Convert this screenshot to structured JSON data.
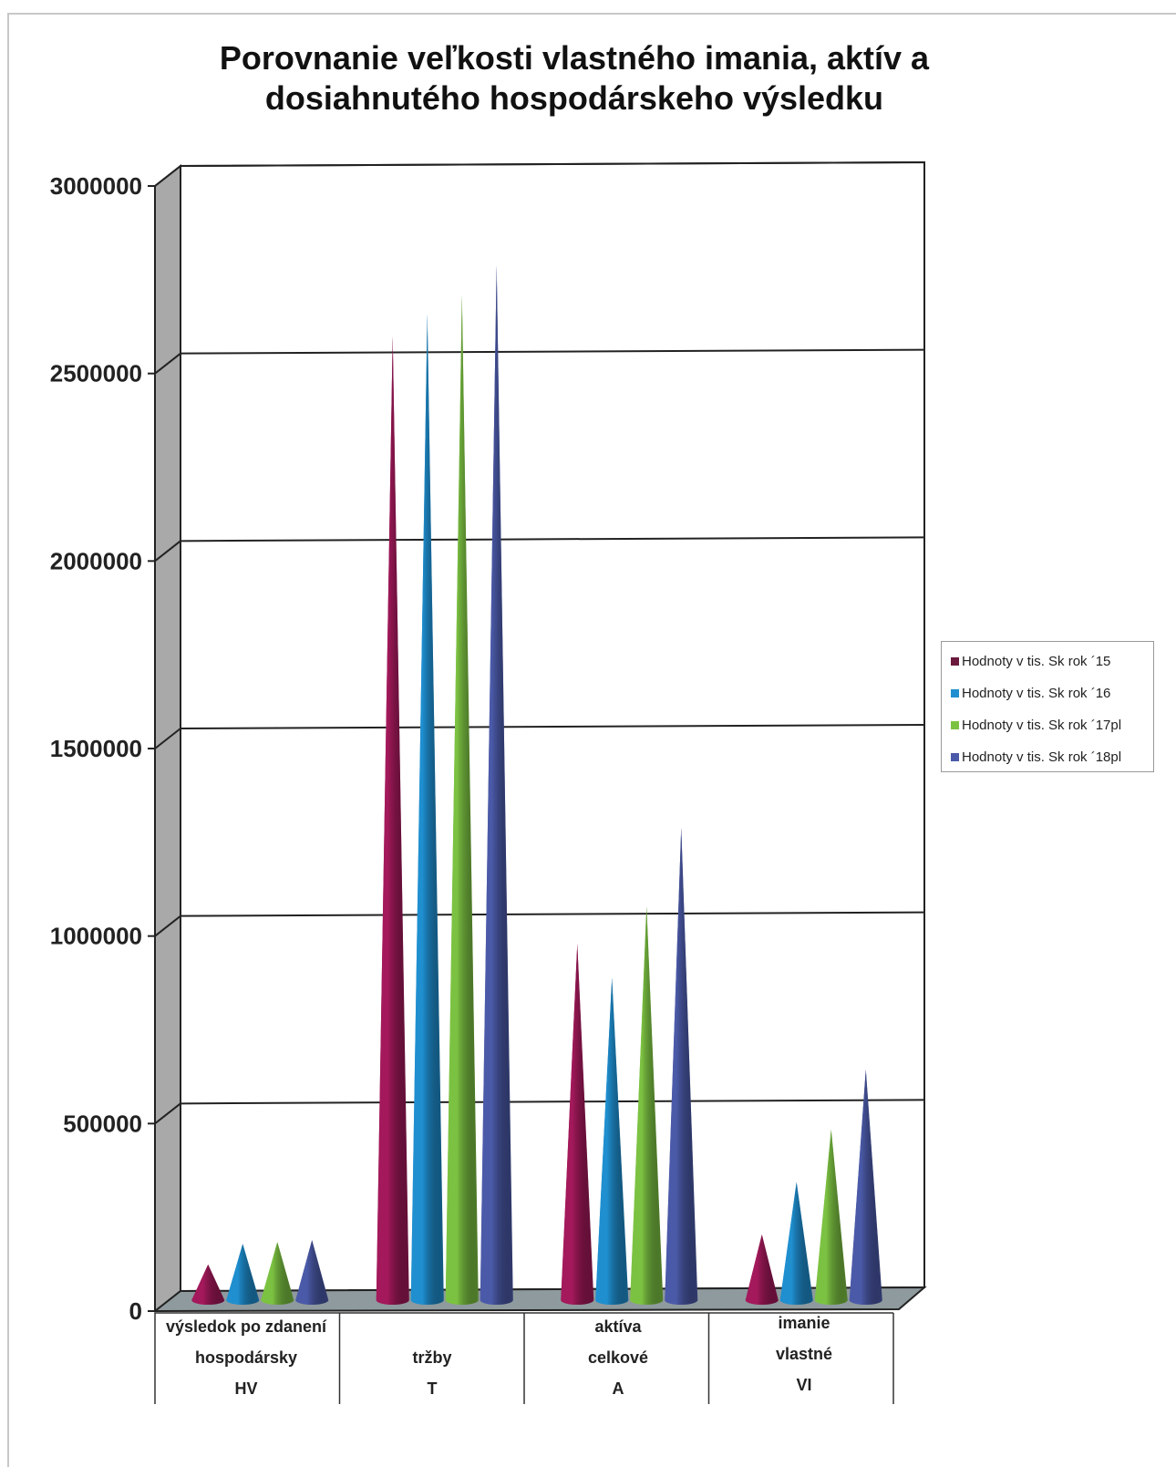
{
  "chart_data": {
    "type": "bar",
    "title_lines": [
      "Porovnanie veľkosti vlastného imania, aktív a",
      "dosiahnutého hospodárskeho výsledku"
    ],
    "categories": [
      {
        "lines": [
          "výsledok po zdanení",
          "hospodársky",
          "HV"
        ]
      },
      {
        "lines": [
          "",
          "tržby",
          "T"
        ]
      },
      {
        "lines": [
          "aktíva",
          "celkové",
          "A"
        ]
      },
      {
        "lines": [
          "imanie",
          "vlastné",
          "VI"
        ]
      }
    ],
    "series": [
      {
        "name": "Hodnoty v tis. Sk rok ´15",
        "color": "#a3195b",
        "values": [
          95000,
          2570000,
          950000,
          175000
        ]
      },
      {
        "name": "Hodnoty v tis. Sk rok ´16",
        "color": "#1f8fd0",
        "values": [
          150000,
          2630000,
          860000,
          315000
        ]
      },
      {
        "name": "Hodnoty v tis. Sk rok ´17pl",
        "color": "#7cc242",
        "values": [
          155000,
          2680000,
          1050000,
          455000
        ]
      },
      {
        "name": "Hodnoty v tis. Sk rok ´18pl",
        "color": "#4b5aa8",
        "values": [
          160000,
          2760000,
          1260000,
          615000
        ]
      }
    ],
    "y_ticks": [
      "0",
      "500000",
      "1000000",
      "1500000",
      "2000000",
      "2500000",
      "3000000"
    ],
    "ylim": [
      0,
      3000000
    ],
    "grid": true,
    "legend_position": "right",
    "shape": "cone"
  }
}
